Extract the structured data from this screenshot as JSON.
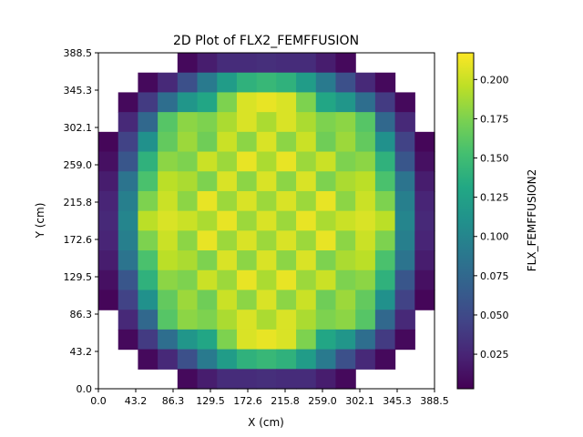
{
  "chart_data": {
    "type": "heatmap",
    "title": "2D Plot of FLX2_FEMFFUSION",
    "xlabel": "X (cm)",
    "ylabel": "Y (cm)",
    "colorbar_label": "FLX_FEMFFUSION2",
    "colormap": "viridis",
    "xlim": [
      0,
      388.5
    ],
    "ylim": [
      0,
      388.5
    ],
    "x_ticks": [
      "0.0",
      "43.2",
      "86.3",
      "129.5",
      "172.6",
      "215.8",
      "259.0",
      "302.1",
      "345.3",
      "388.5"
    ],
    "y_ticks": [
      "0.0",
      "43.2",
      "86.3",
      "129.5",
      "172.6",
      "215.8",
      "259.0",
      "302.1",
      "345.3",
      "388.5"
    ],
    "colorbar_ticks": [
      0.025,
      0.05,
      0.075,
      0.1,
      0.125,
      0.15,
      0.175,
      0.2
    ],
    "colorbar_tick_labels": [
      "0.025",
      "0.050",
      "0.075",
      "0.100",
      "0.125",
      "0.150",
      "0.175",
      "0.200"
    ],
    "vmin": 0.003,
    "vmax": 0.217,
    "grid_size": 17,
    "cell_size_cm": 21.58,
    "rows_top_to_bottom": [
      [
        null,
        null,
        null,
        null,
        0.008,
        0.02,
        0.03,
        0.03,
        0.032,
        0.03,
        0.03,
        0.02,
        0.008,
        null,
        null,
        null,
        null
      ],
      [
        null,
        null,
        0.008,
        0.028,
        0.055,
        0.09,
        0.12,
        0.14,
        0.145,
        0.14,
        0.12,
        0.09,
        0.055,
        0.028,
        0.008,
        null,
        null
      ],
      [
        null,
        0.008,
        0.04,
        0.08,
        0.115,
        0.13,
        0.175,
        0.205,
        0.21,
        0.205,
        0.175,
        0.13,
        0.115,
        0.08,
        0.04,
        0.008,
        null
      ],
      [
        null,
        0.028,
        0.075,
        0.16,
        0.18,
        0.175,
        0.19,
        0.205,
        0.19,
        0.205,
        0.19,
        0.175,
        0.18,
        0.16,
        0.075,
        0.028,
        null
      ],
      [
        0.006,
        0.045,
        0.11,
        0.165,
        0.185,
        0.17,
        0.2,
        0.18,
        0.205,
        0.18,
        0.2,
        0.17,
        0.185,
        0.165,
        0.11,
        0.045,
        0.006
      ],
      [
        0.012,
        0.06,
        0.14,
        0.18,
        0.175,
        0.2,
        0.185,
        0.21,
        0.19,
        0.21,
        0.185,
        0.2,
        0.175,
        0.18,
        0.14,
        0.06,
        0.012
      ],
      [
        0.02,
        0.085,
        0.155,
        0.195,
        0.19,
        0.175,
        0.205,
        0.18,
        0.205,
        0.18,
        0.205,
        0.175,
        0.19,
        0.195,
        0.155,
        0.085,
        0.02
      ],
      [
        0.025,
        0.095,
        0.175,
        0.2,
        0.18,
        0.21,
        0.185,
        0.205,
        0.185,
        0.205,
        0.185,
        0.21,
        0.18,
        0.2,
        0.175,
        0.095,
        0.025
      ],
      [
        0.028,
        0.1,
        0.195,
        0.205,
        0.2,
        0.19,
        0.21,
        0.185,
        0.205,
        0.185,
        0.21,
        0.19,
        0.2,
        0.205,
        0.195,
        0.1,
        0.028
      ],
      [
        0.025,
        0.095,
        0.175,
        0.2,
        0.18,
        0.21,
        0.185,
        0.205,
        0.185,
        0.205,
        0.185,
        0.21,
        0.18,
        0.2,
        0.175,
        0.095,
        0.025
      ],
      [
        0.02,
        0.085,
        0.155,
        0.195,
        0.19,
        0.175,
        0.205,
        0.18,
        0.205,
        0.18,
        0.205,
        0.175,
        0.19,
        0.195,
        0.155,
        0.085,
        0.02
      ],
      [
        0.012,
        0.06,
        0.14,
        0.18,
        0.175,
        0.2,
        0.185,
        0.21,
        0.19,
        0.21,
        0.185,
        0.2,
        0.175,
        0.18,
        0.14,
        0.06,
        0.012
      ],
      [
        0.006,
        0.045,
        0.11,
        0.165,
        0.185,
        0.17,
        0.2,
        0.18,
        0.205,
        0.18,
        0.2,
        0.17,
        0.185,
        0.165,
        0.11,
        0.045,
        0.006
      ],
      [
        null,
        0.028,
        0.075,
        0.16,
        0.18,
        0.175,
        0.19,
        0.205,
        0.19,
        0.205,
        0.19,
        0.175,
        0.18,
        0.16,
        0.075,
        0.028,
        null
      ],
      [
        null,
        0.008,
        0.04,
        0.08,
        0.115,
        0.13,
        0.175,
        0.205,
        0.21,
        0.205,
        0.175,
        0.13,
        0.115,
        0.08,
        0.04,
        0.008,
        null
      ],
      [
        null,
        null,
        0.008,
        0.028,
        0.055,
        0.09,
        0.12,
        0.14,
        0.145,
        0.14,
        0.12,
        0.09,
        0.055,
        0.028,
        0.008,
        null,
        null
      ],
      [
        null,
        null,
        null,
        null,
        0.008,
        0.02,
        0.03,
        0.03,
        0.032,
        0.03,
        0.03,
        0.02,
        0.008,
        null,
        null,
        null,
        null
      ]
    ]
  }
}
